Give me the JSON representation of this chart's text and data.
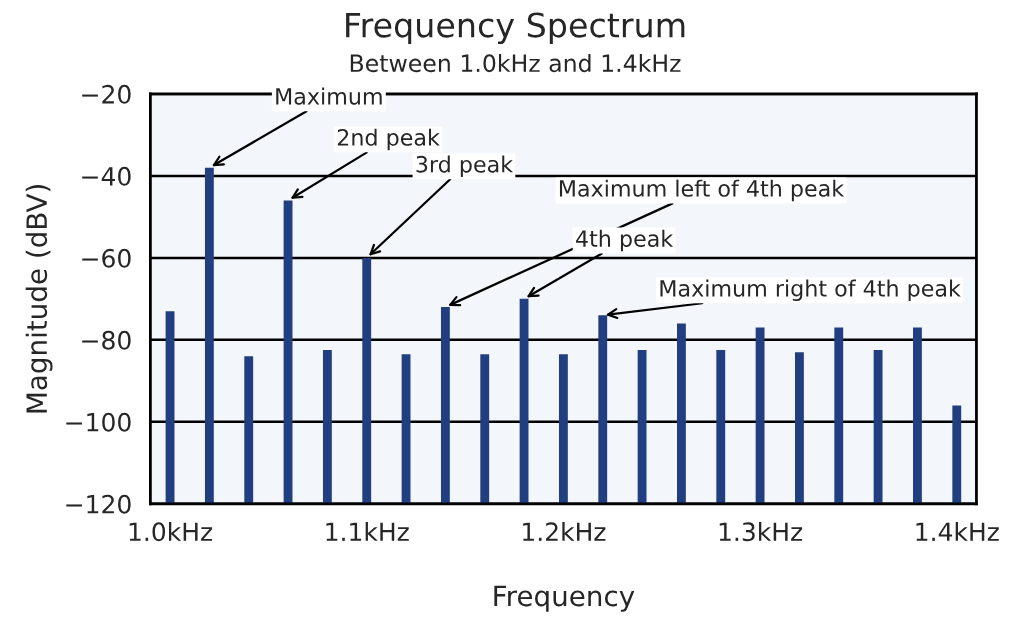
{
  "chart_data": {
    "type": "bar",
    "title": "Frequency Spectrum",
    "subtitle": "Between 1.0kHz and 1.4kHz",
    "xlabel": "Frequency",
    "ylabel": "Magnitude (dBV)",
    "x": [
      1.0,
      1.02,
      1.04,
      1.06,
      1.08,
      1.1,
      1.12,
      1.14,
      1.16,
      1.18,
      1.2,
      1.22,
      1.24,
      1.26,
      1.28,
      1.3,
      1.32,
      1.34,
      1.36,
      1.38,
      1.4
    ],
    "base": [
      -120,
      -120,
      -120,
      -120,
      -120,
      -120,
      -120,
      -120,
      -120,
      -120,
      -120,
      -120,
      -120,
      -120,
      -120,
      -120,
      -120,
      -120,
      -120,
      -120,
      -120
    ],
    "values": [
      47,
      82,
      36,
      74,
      37.5,
      60,
      36.5,
      48,
      36.5,
      50,
      36.5,
      46,
      37.5,
      44,
      37.5,
      43,
      37,
      43,
      37.5,
      43,
      24
    ],
    "color": "#213f80",
    "xlim": [
      0.99,
      1.41
    ],
    "xticks": [
      {
        "value": 1.0,
        "label": "1.0kHz"
      },
      {
        "value": 1.1,
        "label": "1.1kHz"
      },
      {
        "value": 1.2,
        "label": "1.2kHz"
      },
      {
        "value": 1.3,
        "label": "1.3kHz"
      },
      {
        "value": 1.4,
        "label": "1.4kHz"
      }
    ],
    "ylim": [
      -120,
      -20
    ],
    "yticks": [
      {
        "value": -120,
        "label": "−120"
      },
      {
        "value": -100,
        "label": "−100"
      },
      {
        "value": -80,
        "label": "−80"
      },
      {
        "value": -60,
        "label": "−60"
      },
      {
        "value": -40,
        "label": "−40"
      },
      {
        "value": -20,
        "label": "−20"
      }
    ],
    "grid": "y",
    "annotations": [
      {
        "text": "Maximum",
        "x": 1.02,
        "y": -38
      },
      {
        "text": "2nd peak",
        "x": 1.06,
        "y": -46
      },
      {
        "text": "3rd peak",
        "x": 1.1,
        "y": -60
      },
      {
        "text": "Maximum left of 4th peak",
        "x": 1.14,
        "y": -72
      },
      {
        "text": "4th peak",
        "x": 1.18,
        "y": -70
      },
      {
        "text": "Maximum right of 4th peak",
        "x": 1.22,
        "y": -74
      }
    ]
  }
}
